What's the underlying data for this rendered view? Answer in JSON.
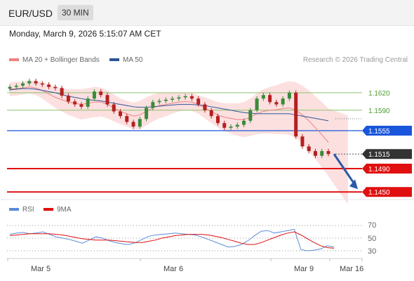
{
  "header": {
    "pair": "EUR/USD",
    "timeframe": "30 MIN",
    "datetime": "Monday, March 9, 2026 5:15:07 AM CET"
  },
  "legend": {
    "bb_label": "MA 20 + Bollinger Bands",
    "ma50_label": "MA 50",
    "rsi_label": "RSI",
    "rsi_ma_label": "9MA",
    "copyright": "Research © 2026 Trading Central"
  },
  "colors": {
    "bb": "#f08080",
    "band_fill": "#fbd5d5",
    "ma50": "#2c5596",
    "resistance": "#8dc26e",
    "pivot": "#1a56db",
    "support": "#e01010",
    "current": "#333333",
    "up": "#3a8a3a",
    "down": "#b52020",
    "arrow": "#2a5aa7",
    "rsi": "#5b8bd9",
    "rsi_ma": "#e01010"
  },
  "chart_data": [
    {
      "type": "line",
      "title": "",
      "x_labels": [
        "Mar 5",
        "Mar 6",
        "Mar 9",
        "Mar 16"
      ],
      "y_range": [
        1.142,
        1.172
      ],
      "levels": [
        {
          "name": "resistance-2",
          "value": "1.1620",
          "kind": "resistance"
        },
        {
          "name": "resistance-1",
          "value": "1.1590",
          "kind": "resistance"
        },
        {
          "name": "pivot",
          "value": "1.1555",
          "kind": "pivot"
        },
        {
          "name": "current",
          "value": "1.1515",
          "kind": "current"
        },
        {
          "name": "support-1",
          "value": "1.1490",
          "kind": "support"
        },
        {
          "name": "support-2",
          "value": "1.1450",
          "kind": "support"
        }
      ],
      "price_series": [
        1.163,
        1.1632,
        1.1636,
        1.164,
        1.1636,
        1.1634,
        1.163,
        1.1628,
        1.1615,
        1.1605,
        1.16,
        1.1596,
        1.161,
        1.1622,
        1.1616,
        1.16,
        1.1588,
        1.158,
        1.157,
        1.1562,
        1.1575,
        1.1594,
        1.1604,
        1.1606,
        1.1608,
        1.161,
        1.1612,
        1.1614,
        1.161,
        1.16,
        1.159,
        1.158,
        1.1568,
        1.156,
        1.1562,
        1.1565,
        1.1572,
        1.159,
        1.161,
        1.1616,
        1.1604,
        1.16,
        1.161,
        1.162,
        1.1545,
        1.1528,
        1.152,
        1.1512,
        1.152,
        1.1515
      ],
      "bb_mid": [
        1.1626,
        1.1627,
        1.1628,
        1.163,
        1.1628,
        1.1624,
        1.1618,
        1.1612,
        1.1608,
        1.1604,
        1.1602,
        1.16,
        1.1602,
        1.1604,
        1.1604,
        1.16,
        1.1594,
        1.1588,
        1.1584,
        1.158,
        1.1582,
        1.1588,
        1.1594,
        1.1598,
        1.16,
        1.1602,
        1.1604,
        1.1605,
        1.1604,
        1.16,
        1.1594,
        1.1588,
        1.1582,
        1.1578,
        1.1576,
        1.1574,
        1.1574,
        1.1578,
        1.1584,
        1.1588,
        1.159,
        1.1591,
        1.1593,
        1.1594,
        1.159,
        1.1582,
        1.1572,
        1.156,
        1.1548,
        1.1535
      ],
      "bb_width": [
        0.0012,
        0.0012,
        0.0011,
        0.0011,
        0.0012,
        0.0014,
        0.0016,
        0.0018,
        0.002,
        0.0022,
        0.0024,
        0.0026,
        0.0026,
        0.0026,
        0.0025,
        0.0024,
        0.0023,
        0.0022,
        0.0022,
        0.0023,
        0.0024,
        0.0024,
        0.0023,
        0.0022,
        0.002,
        0.0018,
        0.0016,
        0.0015,
        0.0015,
        0.0016,
        0.0018,
        0.002,
        0.0022,
        0.0024,
        0.0026,
        0.0028,
        0.003,
        0.0032,
        0.0035,
        0.0038,
        0.004,
        0.0042,
        0.0044,
        0.0046,
        0.0048,
        0.005,
        0.0052,
        0.0054,
        0.0056,
        0.0058
      ],
      "ma50": [
        1.1625,
        1.1626,
        1.1627,
        1.1627,
        1.1626,
        1.1624,
        1.1622,
        1.162,
        1.1617,
        1.1614,
        1.1612,
        1.161,
        1.1608,
        1.1607,
        1.1606,
        1.1604,
        1.1602,
        1.16,
        1.1598,
        1.1596,
        1.1595,
        1.1595,
        1.1596,
        1.1597,
        1.1598,
        1.1599,
        1.16,
        1.16,
        1.16,
        1.1599,
        1.1598,
        1.1596,
        1.1594,
        1.1592,
        1.159,
        1.1588,
        1.1586,
        1.1585,
        1.1584,
        1.1584,
        1.1584,
        1.1584,
        1.1584,
        1.1584,
        1.1582,
        1.158,
        1.1578,
        1.1576,
        1.1574,
        1.1572
      ],
      "projection": {
        "from": 1.1515,
        "to": 1.145
      }
    },
    {
      "type": "line",
      "title": "",
      "y_ticks": [
        "70",
        "50",
        "30"
      ],
      "y_range": [
        20,
        80
      ],
      "series": [
        {
          "name": "RSI",
          "values": [
            56,
            58,
            59,
            57,
            58,
            60,
            56,
            52,
            50,
            48,
            45,
            42,
            47,
            52,
            50,
            46,
            43,
            41,
            40,
            43,
            48,
            53,
            55,
            56,
            57,
            58,
            57,
            56,
            55,
            52,
            48,
            44,
            40,
            36,
            37,
            40,
            46,
            54,
            61,
            62,
            58,
            60,
            62,
            64,
            32,
            30,
            31,
            33,
            38,
            36
          ]
        },
        {
          "name": "9MA",
          "values": [
            54,
            55,
            56,
            57,
            57,
            57,
            57,
            56,
            55,
            53,
            51,
            49,
            48,
            47,
            47,
            47,
            46,
            45,
            44,
            43,
            43,
            45,
            47,
            50,
            52,
            54,
            55,
            56,
            56,
            56,
            55,
            53,
            51,
            48,
            45,
            42,
            40,
            40,
            43,
            47,
            51,
            55,
            58,
            60,
            55,
            49,
            43,
            38,
            35,
            34
          ]
        }
      ]
    }
  ]
}
